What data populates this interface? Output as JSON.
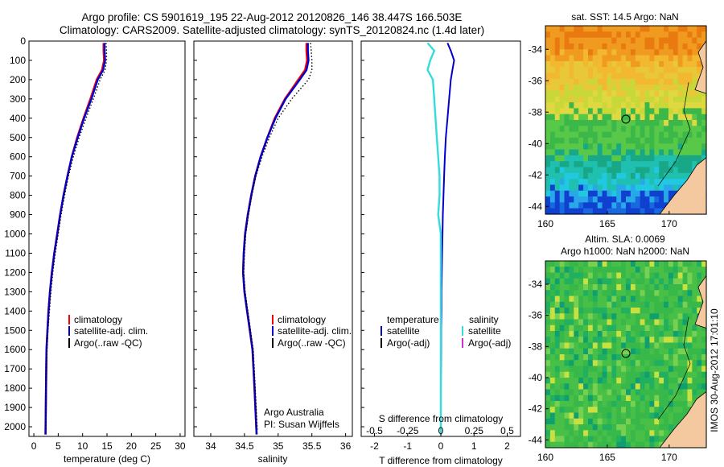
{
  "header": {
    "line1": "Argo profile: CS 5901619_195 22-Aug-2012 20120826_146 38.447S 166.503E",
    "line2": "Climatology: CARS2009. Satellite-adjusted climatology: synTS_20120824.nc (1.4d later)"
  },
  "sidebar_stamp": "IMOS 30-Aug-2012 17:01:10",
  "colors": {
    "climatology": "#ff0000",
    "satellite": "#0000cc",
    "argo": "#000000",
    "satellite_salinity": "#33dddd",
    "argo_salinity": "#cc33cc"
  },
  "chart_data": [
    {
      "id": "temperature",
      "type": "line",
      "xlabel": "temperature (deg C)",
      "xlim": [
        -1,
        31
      ],
      "xticks": [
        0,
        5,
        10,
        15,
        20,
        25,
        30
      ],
      "ylim": [
        2050,
        0
      ],
      "yticks": [
        0,
        100,
        200,
        300,
        400,
        500,
        600,
        700,
        800,
        900,
        1000,
        1100,
        1200,
        1300,
        1400,
        1500,
        1600,
        1700,
        1800,
        1900,
        2000
      ],
      "legend": [
        "climatology",
        "satellite-adj. clim.",
        "Argo(..raw -QC)"
      ],
      "series": [
        {
          "name": "climatology",
          "x": [
            14.3,
            14.3,
            14.4,
            14.0,
            12.9,
            11.6,
            10.2,
            8.9,
            7.8,
            6.9,
            6.1,
            5.4,
            4.8,
            4.2,
            3.7,
            3.3,
            3.0,
            2.8,
            2.6,
            2.5,
            2.4
          ],
          "y": [
            10,
            50,
            100,
            150,
            200,
            300,
            400,
            500,
            600,
            700,
            800,
            900,
            1000,
            1100,
            1200,
            1300,
            1400,
            1500,
            1600,
            1800,
            2040
          ]
        },
        {
          "name": "satellite-adj. clim.",
          "x": [
            14.5,
            14.5,
            14.6,
            14.2,
            13.1,
            11.8,
            10.3,
            9.0,
            7.8,
            6.9,
            6.1,
            5.4,
            4.8,
            4.2,
            3.7,
            3.3,
            3.0,
            2.8,
            2.6,
            2.5,
            2.4
          ],
          "y": [
            10,
            50,
            100,
            150,
            200,
            300,
            400,
            500,
            600,
            700,
            800,
            900,
            1000,
            1100,
            1200,
            1300,
            1400,
            1500,
            1600,
            1800,
            2040
          ]
        },
        {
          "name": "Argo(..raw -QC)",
          "x": [
            14.8,
            14.9,
            14.9,
            14.6,
            13.6,
            12.2,
            10.7,
            9.3,
            8.1,
            7.1,
            6.3,
            5.6,
            5.0,
            4.4,
            3.9,
            3.5,
            3.2,
            2.9,
            2.7,
            2.5,
            2.4
          ],
          "y": [
            10,
            50,
            100,
            150,
            200,
            300,
            400,
            500,
            600,
            700,
            800,
            900,
            1000,
            1100,
            1200,
            1300,
            1400,
            1500,
            1600,
            1800,
            2020
          ]
        }
      ]
    },
    {
      "id": "salinity",
      "type": "line",
      "xlabel": "salinity",
      "xlim": [
        33.75,
        36.1
      ],
      "xticks": [
        34,
        34.5,
        35,
        35.5,
        36
      ],
      "xticklabels": [
        "34",
        "34.5",
        "35",
        "35.5",
        "36"
      ],
      "ylim": [
        2050,
        0
      ],
      "legend": [
        "climatology",
        "satellite-adj. clim.",
        "Argo(..raw -QC)"
      ],
      "annotation": [
        "Argo Australia",
        "PI: Susan Wijffels"
      ],
      "series": [
        {
          "name": "climatology",
          "x": [
            35.42,
            35.42,
            35.43,
            35.4,
            35.3,
            35.1,
            34.95,
            34.84,
            34.74,
            34.66,
            34.6,
            34.55,
            34.51,
            34.49,
            34.48,
            34.5,
            34.54,
            34.58,
            34.62,
            34.65,
            34.68
          ],
          "y": [
            10,
            50,
            100,
            150,
            200,
            300,
            400,
            500,
            600,
            700,
            800,
            900,
            1000,
            1100,
            1200,
            1300,
            1400,
            1500,
            1600,
            1800,
            2040
          ]
        },
        {
          "name": "satellite-adj. clim.",
          "x": [
            35.44,
            35.44,
            35.45,
            35.42,
            35.32,
            35.11,
            34.96,
            34.84,
            34.74,
            34.66,
            34.6,
            34.55,
            34.51,
            34.49,
            34.48,
            34.5,
            34.54,
            34.58,
            34.62,
            34.65,
            34.68
          ],
          "y": [
            10,
            50,
            100,
            150,
            200,
            300,
            400,
            500,
            600,
            700,
            800,
            900,
            1000,
            1100,
            1200,
            1300,
            1400,
            1500,
            1600,
            1800,
            2040
          ]
        },
        {
          "name": "Argo(..raw -QC)",
          "x": [
            35.48,
            35.49,
            35.5,
            35.5,
            35.45,
            35.2,
            35.0,
            34.87,
            34.76,
            34.67,
            34.61,
            34.56,
            34.52,
            34.5,
            34.49,
            34.51,
            34.55,
            34.59,
            34.63,
            34.66,
            34.69
          ],
          "y": [
            10,
            50,
            100,
            150,
            200,
            300,
            400,
            500,
            600,
            700,
            800,
            900,
            1000,
            1100,
            1200,
            1300,
            1400,
            1500,
            1600,
            1800,
            2020
          ]
        }
      ]
    },
    {
      "id": "difference",
      "type": "line",
      "xlabel": "T difference from climatology",
      "xlabel_top": "S difference from climatology",
      "xlim": [
        -2.4,
        2.4
      ],
      "xticks": [
        -2,
        -1,
        0,
        1,
        2
      ],
      "xticks_top": [
        -0.5,
        -0.25,
        0,
        0.25,
        0.5
      ],
      "xticklabels_top": [
        "-0.5",
        "-0.25",
        "0",
        "0.25",
        "0.5"
      ],
      "ylim": [
        2050,
        0
      ],
      "legend_temperature_title": "temperature",
      "legend_salinity_title": "salinity",
      "legend_temperature": [
        "satellite",
        "Argo(-adj)"
      ],
      "legend_salinity": [
        "satellite",
        "Argo(-adj)"
      ],
      "series": [
        {
          "name": "T satellite",
          "x": [
            0.2,
            0.3,
            0.4,
            0.35,
            0.3,
            0.25,
            0.2,
            0.15,
            0.12,
            0.1,
            0.08,
            0.06,
            0.05,
            0.04,
            0.03,
            0.02,
            0.02,
            0.01,
            0.01,
            0.0,
            0.0
          ],
          "y": [
            10,
            50,
            100,
            150,
            200,
            300,
            400,
            500,
            600,
            700,
            800,
            900,
            1000,
            1100,
            1200,
            1300,
            1400,
            1500,
            1600,
            1800,
            2040
          ]
        },
        {
          "name": "S satellite",
          "x": [
            -0.1,
            -0.05,
            -0.08,
            -0.1,
            -0.06,
            -0.05,
            -0.04,
            -0.03,
            -0.02,
            -0.01,
            -0.01,
            -0.02,
            0.0,
            0.0,
            0.0,
            0.0,
            0.0,
            0.0,
            0.0,
            0.0,
            0.0
          ],
          "y": [
            10,
            50,
            100,
            150,
            200,
            300,
            400,
            500,
            600,
            700,
            800,
            900,
            1000,
            1100,
            1200,
            1300,
            1400,
            1500,
            1600,
            1800,
            2040
          ]
        }
      ]
    },
    {
      "id": "sst_map",
      "type": "heatmap",
      "title": "sat. SST: 14.5 Argo: NaN",
      "xlim": [
        160,
        173
      ],
      "ylim": [
        -44.5,
        -32.5
      ],
      "xticks": [
        160,
        165,
        170
      ],
      "yticks": [
        -34,
        -36,
        -38,
        -40,
        -42,
        -44
      ],
      "marker": {
        "lon": 166.5,
        "lat": -38.45
      }
    },
    {
      "id": "sla_map",
      "type": "heatmap",
      "title_line1": "Altim. SLA: 0.0069",
      "title_line2": "Argo h1000: NaN h2000: NaN",
      "xlim": [
        160,
        173
      ],
      "ylim": [
        -44.5,
        -32.5
      ],
      "xticks": [
        160,
        165,
        170
      ],
      "yticks": [
        -34,
        -36,
        -38,
        -40,
        -42,
        -44
      ],
      "marker": {
        "lon": 166.5,
        "lat": -38.45
      }
    }
  ]
}
